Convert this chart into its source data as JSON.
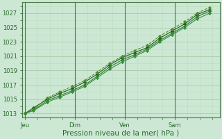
{
  "xlabel": "Pression niveau de la mer( hPa )",
  "bg_color": "#cce8d4",
  "grid_major_color": "#aaccaa",
  "grid_minor_color": "#bbddbb",
  "text_color": "#2d6a2d",
  "axis_color": "#4a7a4a",
  "ylim": [
    1012.5,
    1028.5
  ],
  "yticks": [
    1013,
    1015,
    1017,
    1019,
    1021,
    1023,
    1025,
    1027
  ],
  "xtick_labels": [
    "Jeu",
    "Dim",
    "Ven",
    "Sam"
  ],
  "xtick_positions": [
    0.0,
    2.0,
    4.0,
    6.0
  ],
  "xlim": [
    -0.1,
    7.8
  ],
  "line_color_dark": "#1a5c1a",
  "line_color_mid": "#2e7d32",
  "line_color_light": "#558b2f",
  "line_color_xlight": "#388e3c",
  "series1_x": [
    0,
    0.35,
    0.9,
    1.4,
    1.9,
    2.4,
    2.9,
    3.4,
    3.9,
    4.4,
    4.9,
    5.4,
    5.9,
    6.4,
    6.9,
    7.4
  ],
  "series1_y": [
    1013.0,
    1013.8,
    1015.0,
    1015.8,
    1016.5,
    1017.4,
    1018.5,
    1019.8,
    1020.8,
    1021.5,
    1022.2,
    1023.5,
    1024.5,
    1025.5,
    1026.8,
    1027.5
  ],
  "series2_x": [
    0,
    0.35,
    0.9,
    1.4,
    1.9,
    2.4,
    2.9,
    3.4,
    3.9,
    4.4,
    4.9,
    5.4,
    5.9,
    6.4,
    6.9,
    7.4
  ],
  "series2_y": [
    1013.0,
    1013.5,
    1014.8,
    1015.5,
    1016.2,
    1017.0,
    1018.2,
    1019.5,
    1020.5,
    1021.2,
    1022.0,
    1023.2,
    1024.2,
    1025.2,
    1026.5,
    1027.3
  ],
  "series3_x": [
    0,
    0.35,
    0.9,
    1.4,
    1.9,
    2.4,
    2.9,
    3.4,
    3.9,
    4.4,
    4.9,
    5.4,
    5.9,
    6.4,
    6.9,
    7.4
  ],
  "series3_y": [
    1013.0,
    1013.6,
    1015.2,
    1016.0,
    1016.8,
    1017.6,
    1018.8,
    1020.0,
    1021.0,
    1021.8,
    1022.5,
    1023.8,
    1024.8,
    1025.8,
    1027.0,
    1027.8
  ],
  "series4_x": [
    0,
    0.35,
    0.9,
    1.4,
    1.9,
    2.4,
    2.9,
    3.4,
    3.9,
    4.4,
    4.9,
    5.4,
    5.9,
    6.4,
    6.9,
    7.4
  ],
  "series4_y": [
    1013.0,
    1013.4,
    1014.6,
    1015.3,
    1016.0,
    1016.8,
    1018.0,
    1019.2,
    1020.2,
    1021.0,
    1021.8,
    1023.0,
    1024.0,
    1025.0,
    1026.2,
    1027.0
  ]
}
